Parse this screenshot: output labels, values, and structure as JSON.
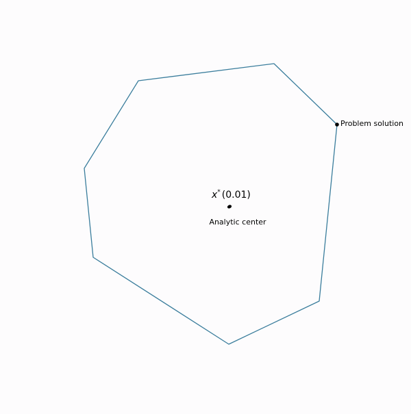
{
  "diagram": {
    "labels": {
      "x_star_symbol": "x",
      "x_star_superscript": "*",
      "x_star_value": "(0.01)",
      "analytic_center": "Analytic center",
      "problem_solution": "Problem solution"
    },
    "colors": {
      "background": "#fdfcfd",
      "polygon_stroke": "#3a7d9c",
      "point_fill": "#000000",
      "text": "#000000"
    }
  }
}
